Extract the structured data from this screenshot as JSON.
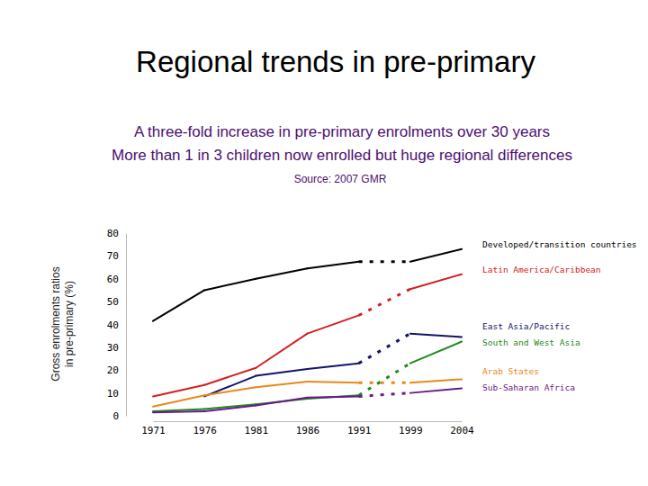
{
  "chart_data": {
    "type": "line",
    "title": "Regional trends in pre-primary",
    "subtitle": [
      "A three-fold increase in pre-primary enrolments over 30 years",
      "More than 1 in 3 children now enrolled but huge regional differences"
    ],
    "annotations": [
      "Source: 2007 GMR"
    ],
    "ylabel": [
      "Gross enrolments ratios",
      "in pre-primary (%)"
    ],
    "categories": [
      "1971",
      "1976",
      "1981",
      "1986",
      "1991",
      "1999",
      "2004"
    ],
    "ylim": [
      0,
      80
    ],
    "yticks": [
      0,
      10,
      20,
      30,
      40,
      50,
      60,
      70,
      80
    ],
    "grid": false,
    "series": [
      {
        "name": "Developed/transition countries",
        "color": "#000000",
        "values": [
          41.5,
          55,
          60,
          64.5,
          67.5,
          67.5,
          73
        ]
      },
      {
        "name": "Latin America/Caribbean",
        "color": "#d42020",
        "values": [
          8.5,
          13.5,
          21,
          36,
          44,
          55.5,
          62
        ]
      },
      {
        "name": "East Asia/Pacific",
        "color": "#14146a",
        "values": [
          null,
          8.5,
          17.5,
          20.5,
          23,
          36,
          34.5
        ]
      },
      {
        "name": "South and West Asia",
        "color": "#1f8a1f",
        "values": [
          2,
          3,
          5,
          7.5,
          9,
          23,
          32.5
        ]
      },
      {
        "name": "Arab States",
        "color": "#e8891a",
        "values": [
          4,
          9,
          12.5,
          15,
          14.5,
          14.5,
          16
        ]
      },
      {
        "name": "Sub-Saharan Africa",
        "color": "#6a1a8a",
        "values": [
          1.5,
          2,
          4.5,
          8,
          8.5,
          10,
          12
        ]
      }
    ]
  }
}
